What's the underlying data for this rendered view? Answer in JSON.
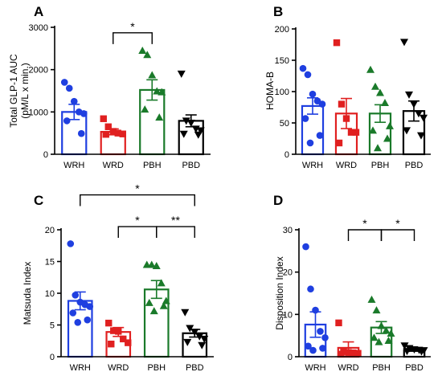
{
  "chart_data": [
    {
      "type": "bar",
      "panel": "A",
      "ylabel_lines": [
        "Total GLP-1 AUC",
        "(pM/L x min.)"
      ],
      "ylim": [
        0,
        3000
      ],
      "yticks": [
        0,
        1000,
        2000,
        3000
      ],
      "categories": [
        "WRH",
        "WRD",
        "PBH",
        "PBD"
      ],
      "colors": [
        "#1f3fe0",
        "#e02020",
        "#1a7a2a",
        "#000000"
      ],
      "markers": [
        "circle",
        "square",
        "triangle",
        "triangle-down"
      ],
      "means": [
        1000,
        530,
        1520,
        790
      ],
      "sem": [
        180,
        70,
        240,
        140
      ],
      "points": [
        [
          1700,
          1560,
          1250,
          1000,
          960,
          790,
          490
        ],
        [
          840,
          650,
          540,
          500,
          480,
          470
        ],
        [
          2450,
          2350,
          1870,
          1490,
          1470,
          1060,
          870
        ],
        [
          1900,
          790,
          740,
          600,
          560,
          480,
          460
        ]
      ],
      "significance": [
        {
          "from": 1,
          "to": 2,
          "label": "*",
          "y": 2870
        }
      ]
    },
    {
      "type": "bar",
      "panel": "B",
      "ylabel_lines": [
        "HOMA-B"
      ],
      "ylim": [
        0,
        200
      ],
      "yticks": [
        0,
        50,
        100,
        150,
        200
      ],
      "categories": [
        "WRH",
        "WRD",
        "PBH",
        "PBD"
      ],
      "colors": [
        "#1f3fe0",
        "#e02020",
        "#1a7a2a",
        "#000000"
      ],
      "markers": [
        "circle",
        "square",
        "triangle",
        "triangle-down"
      ],
      "means": [
        77,
        65,
        65,
        69
      ],
      "sem": [
        13,
        24,
        14,
        16
      ],
      "points": [
        [
          137,
          127,
          96,
          85,
          80,
          57,
          30,
          18
        ],
        [
          178,
          80,
          57,
          35,
          35,
          18
        ],
        [
          135,
          108,
          98,
          82,
          45,
          38,
          25,
          10
        ],
        [
          179,
          95,
          80,
          65,
          58,
          38,
          30
        ]
      ],
      "significance": []
    },
    {
      "type": "bar",
      "panel": "C",
      "ylabel_lines": [
        "Matsuda Index"
      ],
      "ylim": [
        0,
        20
      ],
      "yticks": [
        0,
        5,
        10,
        15,
        20
      ],
      "categories": [
        "WRH",
        "WRD",
        "PBH",
        "PBD"
      ],
      "colors": [
        "#1f3fe0",
        "#e02020",
        "#1a7a2a",
        "#000000"
      ],
      "markers": [
        "circle",
        "square",
        "triangle",
        "triangle-down"
      ],
      "means": [
        8.8,
        3.9,
        10.6,
        3.7
      ],
      "sem": [
        1.4,
        0.7,
        1.4,
        0.6
      ],
      "points": [
        [
          17.8,
          9.7,
          8.6,
          8.2,
          7.9,
          6.9,
          5.8,
          5.4
        ],
        [
          5.3,
          4.1,
          4.0,
          2.8,
          2.2,
          2.0
        ],
        [
          14.5,
          14.5,
          14.3,
          11.6,
          8.8,
          8.5,
          8.0,
          7.2
        ],
        [
          7.0,
          4.5,
          3.9,
          3.2,
          2.8,
          2.3,
          1.8
        ]
      ],
      "significance": [
        {
          "from": 0,
          "to": 3,
          "label": "*",
          "y": 25.5
        },
        {
          "from": 1,
          "to": 2,
          "label": "*",
          "y": 20.5
        },
        {
          "from": 2,
          "to": 3,
          "label": "**",
          "y": 20.5
        }
      ]
    },
    {
      "type": "bar",
      "panel": "D",
      "ylabel_lines": [
        "Disposition Index"
      ],
      "ylim": [
        0,
        30
      ],
      "yticks": [
        0,
        10,
        20,
        30
      ],
      "categories": [
        "WRH",
        "WRD",
        "PBH",
        "PBD"
      ],
      "colors": [
        "#1f3fe0",
        "#e02020",
        "#1a7a2a",
        "#000000"
      ],
      "markers": [
        "circle",
        "square",
        "triangle",
        "triangle-down"
      ],
      "means": [
        7.6,
        2.1,
        6.9,
        1.6
      ],
      "sem": [
        3.0,
        1.4,
        1.4,
        0.3
      ],
      "points": [
        [
          26.0,
          16.0,
          11.0,
          6.0,
          4.5,
          2.5,
          2.0,
          1.5
        ],
        [
          8.0,
          1.2,
          1.0,
          0.9,
          0.8,
          0.6
        ],
        [
          13.5,
          11.0,
          7.3,
          6.2,
          5.5,
          4.5,
          3.8,
          3.5
        ],
        [
          2.6,
          2.0,
          1.7,
          1.6,
          1.5,
          1.3,
          1.2
        ]
      ],
      "significance": [
        {
          "from": 1,
          "to": 2,
          "label": "*",
          "y": 30
        },
        {
          "from": 2,
          "to": 3,
          "label": "*",
          "y": 30
        }
      ]
    }
  ]
}
